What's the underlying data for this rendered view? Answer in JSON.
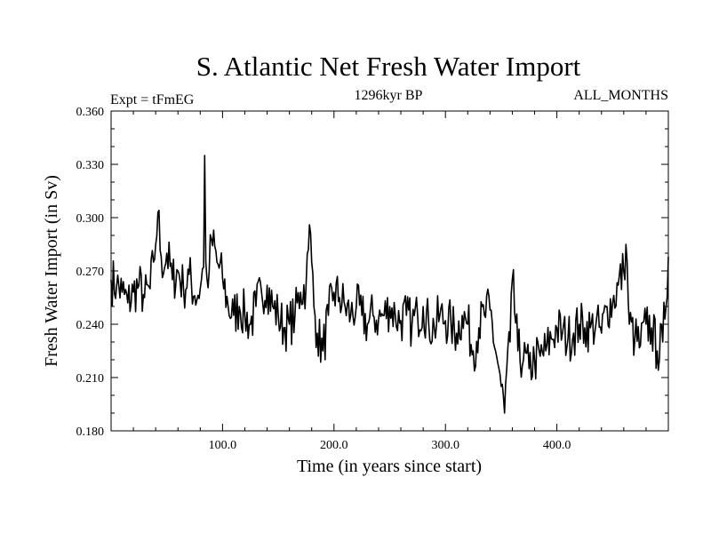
{
  "chart_data": {
    "type": "line",
    "title": "S. Atlantic Net Fresh Water Import",
    "subtitle_left": "Expt = tFmEG",
    "subtitle_center": "1296kyr BP",
    "subtitle_right": "ALL_MONTHS",
    "xlabel": "Time (in years since start)",
    "ylabel": "Fresh Water Import (in Sv)",
    "xlim": [
      0,
      500
    ],
    "ylim": [
      0.18,
      0.36
    ],
    "x_ticks": [
      100,
      200,
      300,
      400
    ],
    "x_tick_labels": [
      "100.0",
      "200.0",
      "300.0",
      "400.0"
    ],
    "y_ticks": [
      0.18,
      0.21,
      0.24,
      0.27,
      0.3,
      0.33,
      0.36
    ],
    "y_tick_labels": [
      "0.180",
      "0.210",
      "0.240",
      "0.270",
      "0.300",
      "0.330",
      "0.360"
    ],
    "grid": false,
    "series": [
      {
        "name": "Fresh Water Import",
        "x": [
          0,
          5,
          10,
          15,
          20,
          25,
          30,
          35,
          38,
          40,
          42,
          45,
          48,
          50,
          55,
          60,
          65,
          70,
          75,
          80,
          83,
          84,
          85,
          86,
          88,
          90,
          95,
          100,
          105,
          110,
          115,
          120,
          125,
          130,
          135,
          140,
          145,
          150,
          155,
          160,
          165,
          170,
          175,
          177,
          178,
          180,
          182,
          185,
          190,
          195,
          200,
          205,
          210,
          215,
          220,
          225,
          230,
          235,
          240,
          245,
          250,
          255,
          260,
          265,
          270,
          275,
          280,
          285,
          290,
          295,
          300,
          305,
          310,
          315,
          320,
          325,
          330,
          335,
          340,
          345,
          348,
          350,
          353,
          355,
          358,
          360,
          365,
          370,
          375,
          380,
          385,
          390,
          395,
          400,
          405,
          410,
          415,
          420,
          425,
          430,
          435,
          440,
          445,
          450,
          455,
          460,
          462,
          465,
          470,
          475,
          480,
          485,
          490,
          495,
          500
        ],
        "values": [
          0.265,
          0.262,
          0.258,
          0.252,
          0.258,
          0.262,
          0.255,
          0.26,
          0.275,
          0.285,
          0.303,
          0.278,
          0.272,
          0.28,
          0.265,
          0.27,
          0.26,
          0.268,
          0.256,
          0.26,
          0.272,
          0.335,
          0.275,
          0.266,
          0.27,
          0.288,
          0.275,
          0.266,
          0.25,
          0.245,
          0.25,
          0.245,
          0.24,
          0.25,
          0.258,
          0.262,
          0.25,
          0.245,
          0.238,
          0.24,
          0.245,
          0.258,
          0.262,
          0.282,
          0.296,
          0.275,
          0.25,
          0.235,
          0.225,
          0.245,
          0.258,
          0.255,
          0.25,
          0.245,
          0.25,
          0.245,
          0.24,
          0.245,
          0.243,
          0.245,
          0.25,
          0.245,
          0.242,
          0.245,
          0.24,
          0.245,
          0.25,
          0.24,
          0.238,
          0.245,
          0.242,
          0.24,
          0.235,
          0.245,
          0.24,
          0.225,
          0.238,
          0.245,
          0.248,
          0.225,
          0.215,
          0.205,
          0.19,
          0.215,
          0.23,
          0.265,
          0.225,
          0.22,
          0.215,
          0.22,
          0.222,
          0.225,
          0.232,
          0.238,
          0.235,
          0.232,
          0.235,
          0.24,
          0.238,
          0.238,
          0.24,
          0.235,
          0.25,
          0.252,
          0.262,
          0.27,
          0.285,
          0.24,
          0.232,
          0.228,
          0.24,
          0.238,
          0.225,
          0.23,
          0.278
        ]
      }
    ]
  }
}
